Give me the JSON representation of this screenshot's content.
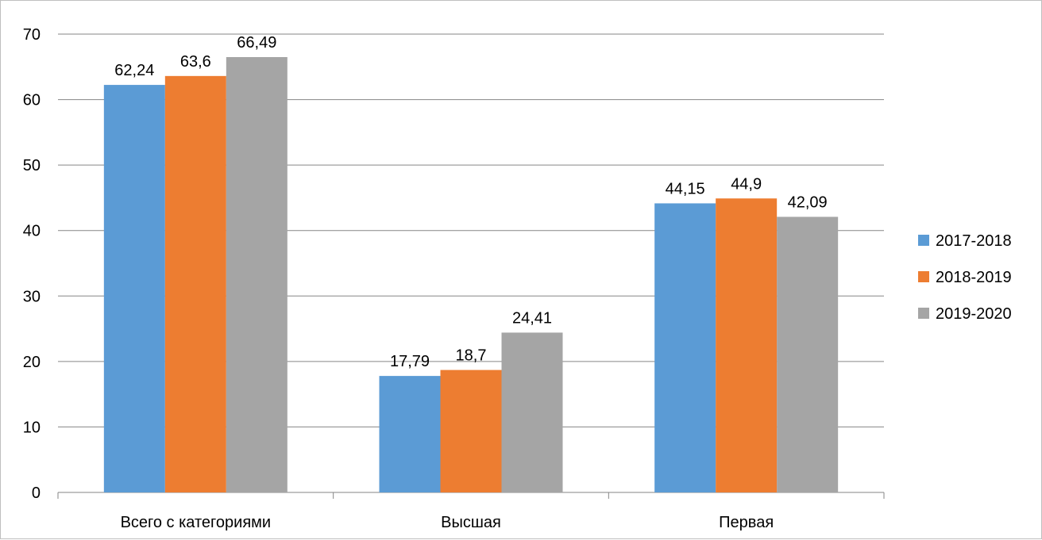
{
  "chart_data": {
    "type": "bar",
    "categories": [
      "Всего с категориями",
      "Высшая",
      "Первая"
    ],
    "series": [
      {
        "name": "2017-2018",
        "values": [
          62.24,
          17.79,
          44.15
        ],
        "labels": [
          "62,24",
          "17,79",
          "44,15"
        ],
        "color": "#5b9bd5"
      },
      {
        "name": "2018-2019",
        "values": [
          63.6,
          18.7,
          44.9
        ],
        "labels": [
          "63,6",
          "18,7",
          "44,9"
        ],
        "color": "#ed7d31"
      },
      {
        "name": "2019-2020",
        "values": [
          66.49,
          24.41,
          42.09
        ],
        "labels": [
          "66,49",
          "24,41",
          "42,09"
        ],
        "color": "#a5a5a5"
      }
    ],
    "yticks": [
      "0",
      "10",
      "20",
      "30",
      "40",
      "50",
      "60",
      "70"
    ],
    "ylim": [
      0,
      70
    ],
    "grid": true,
    "legend_position": "right",
    "data_labels": true
  }
}
